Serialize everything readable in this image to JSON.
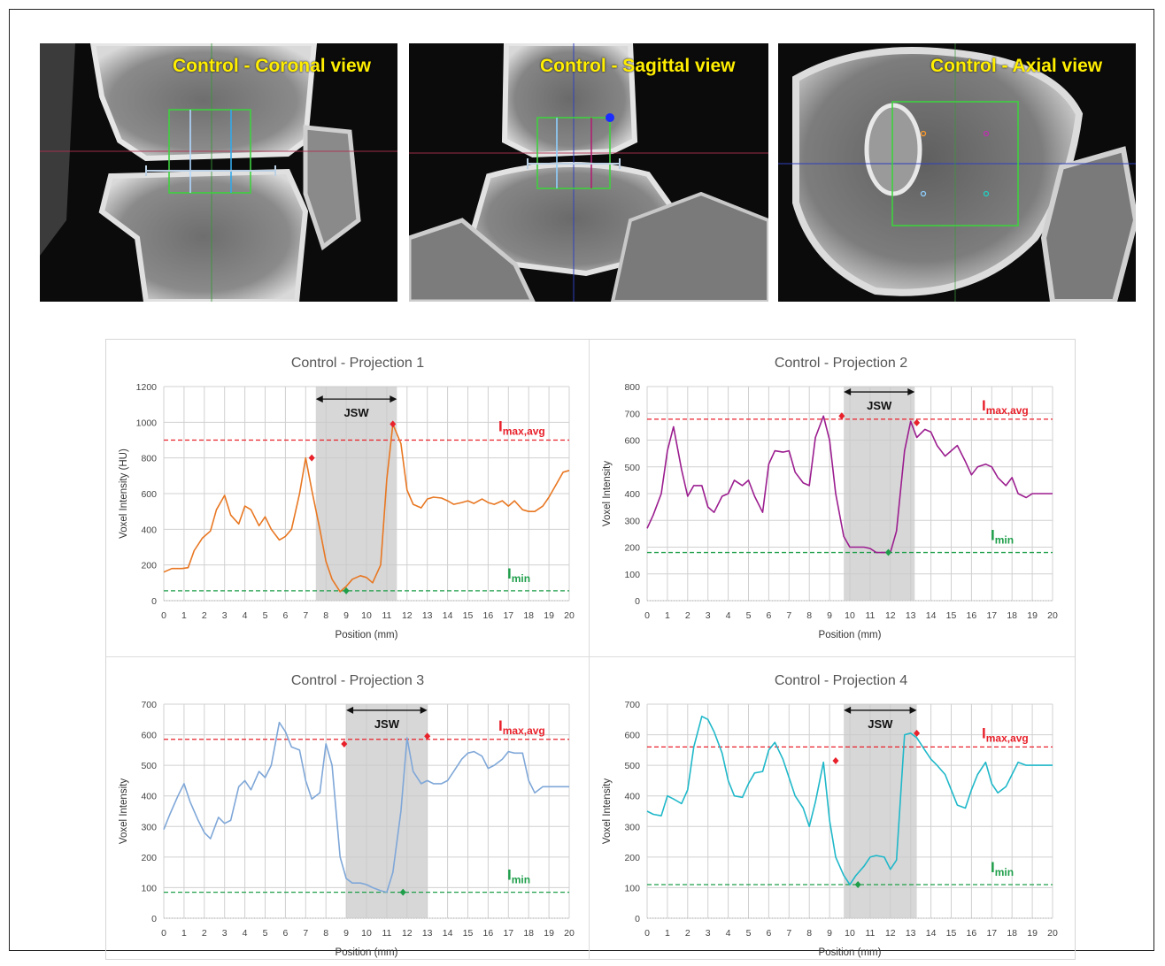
{
  "views": [
    {
      "title": "Control - Coronal view"
    },
    {
      "title": "Control - Sagittal view"
    },
    {
      "title": "Control - Axial view"
    }
  ],
  "annotations": {
    "jsw": "JSW",
    "imax_main": "I",
    "imax_sub": "max,avg",
    "imin_main": "I",
    "imin_sub": "min"
  },
  "colors": {
    "imax": "#e8212b",
    "imin": "#1f9e4a",
    "band": "#c9c9c9",
    "ct_label": "#ffee00"
  },
  "chart_data": [
    {
      "type": "line",
      "title": "Control - Projection 1",
      "xlabel": "Position (mm)",
      "ylabel": "Voxel Intensity (HU)",
      "xlim": [
        0,
        20
      ],
      "ylim": [
        0,
        1200
      ],
      "ystep": 200,
      "x_ticks": [
        0,
        1,
        2,
        3,
        4,
        5,
        6,
        7,
        8,
        9,
        10,
        11,
        12,
        13,
        14,
        15,
        16,
        17,
        18,
        19,
        20
      ],
      "color": "#e87722",
      "x": [
        0,
        0.4,
        0.9,
        1.2,
        1.5,
        1.9,
        2.3,
        2.6,
        3.0,
        3.3,
        3.7,
        4.0,
        4.3,
        4.7,
        5.0,
        5.3,
        5.7,
        6.0,
        6.3,
        6.7,
        7.0,
        7.3,
        7.7,
        8.0,
        8.3,
        8.7,
        9.0,
        9.3,
        9.7,
        10.0,
        10.3,
        10.7,
        11.0,
        11.3,
        11.7,
        12.0,
        12.3,
        12.7,
        13.0,
        13.3,
        13.7,
        14.0,
        14.3,
        14.7,
        15.0,
        15.3,
        15.7,
        16.0,
        16.3,
        16.7,
        17.0,
        17.3,
        17.7,
        18.0,
        18.3,
        18.7,
        19.0,
        19.3,
        19.7,
        20.0
      ],
      "y": [
        160,
        180,
        180,
        185,
        280,
        350,
        390,
        510,
        590,
        480,
        430,
        530,
        510,
        420,
        470,
        400,
        340,
        360,
        400,
        600,
        800,
        620,
        400,
        220,
        120,
        50,
        80,
        120,
        140,
        130,
        100,
        200,
        680,
        990,
        880,
        620,
        540,
        520,
        570,
        580,
        575,
        560,
        540,
        550,
        560,
        545,
        570,
        550,
        540,
        560,
        530,
        560,
        510,
        500,
        500,
        530,
        580,
        640,
        720,
        730
      ],
      "band": [
        7.5,
        11.5
      ],
      "jsw_y": 1130,
      "imax_avg": 900,
      "imin": 55,
      "max_points": [
        {
          "x": 7.3,
          "y": 800
        },
        {
          "x": 11.3,
          "y": 990
        }
      ],
      "min_point": {
        "x": 9.0,
        "y": 55
      }
    },
    {
      "type": "line",
      "title": "Control - Projection 2",
      "xlabel": "Position (mm)",
      "ylabel": "Voxel Intensity",
      "xlim": [
        0,
        20
      ],
      "ylim": [
        0,
        800
      ],
      "ystep": 100,
      "x_ticks": [
        0,
        1,
        2,
        3,
        4,
        5,
        6,
        7,
        8,
        9,
        10,
        11,
        12,
        13,
        14,
        15,
        16,
        17,
        18,
        19,
        20
      ],
      "color": "#9b1d8f",
      "x": [
        0,
        0.3,
        0.7,
        1.0,
        1.3,
        1.7,
        2.0,
        2.3,
        2.7,
        3.0,
        3.3,
        3.7,
        4.0,
        4.3,
        4.7,
        5.0,
        5.3,
        5.7,
        6.0,
        6.3,
        6.7,
        7.0,
        7.3,
        7.7,
        8.0,
        8.3,
        8.7,
        9.0,
        9.3,
        9.7,
        10.0,
        10.3,
        10.7,
        11.0,
        11.3,
        11.7,
        12.0,
        12.3,
        12.7,
        13.0,
        13.3,
        13.7,
        14.0,
        14.3,
        14.7,
        15.0,
        15.3,
        15.7,
        16.0,
        16.3,
        16.7,
        17.0,
        17.3,
        17.7,
        18.0,
        18.3,
        18.7,
        19.0,
        19.3,
        19.7,
        20.0
      ],
      "y": [
        270,
        320,
        400,
        560,
        650,
        490,
        390,
        430,
        430,
        350,
        330,
        390,
        400,
        450,
        430,
        450,
        390,
        330,
        510,
        560,
        555,
        560,
        480,
        440,
        430,
        610,
        690,
        600,
        400,
        240,
        200,
        200,
        200,
        195,
        180,
        180,
        180,
        260,
        560,
        670,
        610,
        640,
        630,
        580,
        540,
        560,
        580,
        520,
        470,
        500,
        510,
        500,
        460,
        430,
        460,
        400,
        385,
        400,
        400,
        400,
        400
      ],
      "band": [
        9.7,
        13.2
      ],
      "jsw_y": 780,
      "imax_avg": 678,
      "imin": 180,
      "max_points": [
        {
          "x": 9.6,
          "y": 690
        },
        {
          "x": 13.3,
          "y": 665
        }
      ],
      "min_point": {
        "x": 11.9,
        "y": 180
      }
    },
    {
      "type": "line",
      "title": "Control - Projection 3",
      "xlabel": "Position (mm)",
      "ylabel": "Voxel Intensity",
      "xlim": [
        0,
        20
      ],
      "ylim": [
        0,
        700
      ],
      "ystep": 100,
      "x_ticks": [
        0,
        1,
        2,
        3,
        4,
        5,
        6,
        7,
        8,
        9,
        10,
        11,
        12,
        13,
        14,
        15,
        16,
        17,
        18,
        19,
        20
      ],
      "color": "#7fa7d8",
      "x": [
        0,
        0.3,
        0.7,
        1.0,
        1.3,
        1.7,
        2.0,
        2.3,
        2.7,
        3.0,
        3.3,
        3.7,
        4.0,
        4.3,
        4.7,
        5.0,
        5.3,
        5.7,
        6.0,
        6.3,
        6.7,
        7.0,
        7.3,
        7.7,
        8.0,
        8.3,
        8.7,
        9.0,
        9.3,
        9.7,
        10.0,
        10.3,
        10.7,
        11.0,
        11.3,
        11.7,
        12.0,
        12.3,
        12.7,
        13.0,
        13.3,
        13.7,
        14.0,
        14.3,
        14.7,
        15.0,
        15.3,
        15.7,
        16.0,
        16.3,
        16.7,
        17.0,
        17.3,
        17.7,
        18.0,
        18.3,
        18.7,
        19.0,
        19.3,
        19.7,
        20.0
      ],
      "y": [
        290,
        340,
        400,
        440,
        380,
        320,
        280,
        260,
        330,
        310,
        320,
        430,
        450,
        420,
        480,
        460,
        500,
        640,
        610,
        560,
        550,
        450,
        390,
        410,
        570,
        500,
        200,
        130,
        115,
        115,
        110,
        100,
        90,
        85,
        150,
        350,
        590,
        480,
        440,
        450,
        440,
        440,
        450,
        480,
        520,
        540,
        545,
        530,
        490,
        500,
        520,
        545,
        540,
        540,
        450,
        410,
        430,
        430,
        430,
        430,
        430
      ],
      "band": [
        9.0,
        13.0
      ],
      "jsw_y": 680,
      "imax_avg": 585,
      "imin": 85,
      "max_points": [
        {
          "x": 8.9,
          "y": 570
        },
        {
          "x": 13.0,
          "y": 595
        }
      ],
      "min_point": {
        "x": 11.8,
        "y": 85
      }
    },
    {
      "type": "line",
      "title": "Control - Projection 4",
      "xlabel": "Position (mm)",
      "ylabel": "Voxel Intensity",
      "xlim": [
        0,
        20
      ],
      "ylim": [
        0,
        700
      ],
      "ystep": 100,
      "x_ticks": [
        0,
        1,
        2,
        3,
        4,
        5,
        6,
        7,
        8,
        9,
        10,
        11,
        12,
        13,
        14,
        15,
        16,
        17,
        18,
        19,
        20
      ],
      "color": "#1fb8c9",
      "x": [
        0,
        0.3,
        0.7,
        1.0,
        1.3,
        1.7,
        2.0,
        2.3,
        2.7,
        3.0,
        3.3,
        3.7,
        4.0,
        4.3,
        4.7,
        5.0,
        5.3,
        5.7,
        6.0,
        6.3,
        6.7,
        7.0,
        7.3,
        7.7,
        8.0,
        8.3,
        8.7,
        9.0,
        9.3,
        9.7,
        10.0,
        10.3,
        10.7,
        11.0,
        11.3,
        11.7,
        12.0,
        12.3,
        12.7,
        13.0,
        13.3,
        13.7,
        14.0,
        14.3,
        14.7,
        15.0,
        15.3,
        15.7,
        16.0,
        16.3,
        16.7,
        17.0,
        17.3,
        17.7,
        18.0,
        18.3,
        18.7,
        19.0,
        19.3,
        19.7,
        20.0
      ],
      "y": [
        350,
        340,
        335,
        400,
        390,
        375,
        420,
        560,
        660,
        650,
        610,
        540,
        450,
        400,
        395,
        440,
        475,
        480,
        550,
        575,
        520,
        460,
        400,
        360,
        300,
        380,
        510,
        320,
        200,
        140,
        110,
        140,
        170,
        200,
        205,
        200,
        160,
        190,
        600,
        605,
        590,
        550,
        520,
        500,
        470,
        420,
        370,
        360,
        420,
        470,
        510,
        440,
        410,
        430,
        470,
        510,
        500,
        500,
        500,
        500,
        500
      ],
      "band": [
        9.7,
        13.3
      ],
      "jsw_y": 680,
      "imax_avg": 560,
      "imin": 110,
      "max_points": [
        {
          "x": 9.3,
          "y": 515
        },
        {
          "x": 13.3,
          "y": 605
        }
      ],
      "min_point": {
        "x": 10.4,
        "y": 110
      }
    }
  ]
}
